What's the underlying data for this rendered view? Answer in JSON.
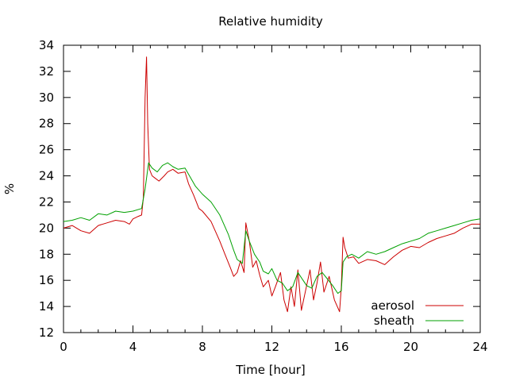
{
  "chart_data": {
    "type": "line",
    "title": "Relative humidity",
    "xlabel": "Time [hour]",
    "ylabel": "%",
    "xlim": [
      0,
      24
    ],
    "ylim": [
      12,
      34
    ],
    "xticks": [
      0,
      4,
      8,
      12,
      16,
      20,
      24
    ],
    "yticks": [
      12,
      14,
      16,
      18,
      20,
      22,
      24,
      26,
      28,
      30,
      32,
      34
    ],
    "grid": false,
    "legend_position": "bottom-right",
    "series": [
      {
        "name": "aerosol",
        "color": "#cc0000",
        "x": [
          0,
          0.5,
          1.0,
          1.5,
          2.0,
          2.5,
          3.0,
          3.5,
          3.8,
          4.0,
          4.3,
          4.5,
          4.6,
          4.7,
          4.78,
          4.85,
          4.95,
          5.1,
          5.3,
          5.5,
          5.8,
          6.0,
          6.3,
          6.6,
          7.0,
          7.2,
          7.5,
          7.8,
          8.0,
          8.5,
          9.0,
          9.3,
          9.6,
          9.8,
          10.0,
          10.2,
          10.4,
          10.5,
          10.7,
          10.9,
          11.1,
          11.3,
          11.5,
          11.8,
          12.0,
          12.2,
          12.5,
          12.7,
          12.9,
          13.1,
          13.3,
          13.5,
          13.7,
          14.0,
          14.2,
          14.4,
          14.6,
          14.8,
          15.0,
          15.3,
          15.6,
          15.9,
          16.0,
          16.1,
          16.2,
          16.4,
          16.7,
          17.0,
          17.5,
          18.0,
          18.5,
          19.0,
          19.5,
          20.0,
          20.5,
          21.0,
          21.5,
          22.0,
          22.5,
          23.0,
          23.5,
          24.0
        ],
        "y": [
          20.0,
          20.2,
          19.8,
          19.6,
          20.2,
          20.4,
          20.6,
          20.5,
          20.3,
          20.7,
          20.9,
          21.0,
          22.3,
          30.0,
          33.1,
          28.0,
          24.5,
          24.0,
          23.8,
          23.6,
          24.0,
          24.3,
          24.5,
          24.2,
          24.3,
          23.4,
          22.5,
          21.5,
          21.3,
          20.5,
          19.0,
          18.0,
          17.0,
          16.3,
          16.6,
          17.5,
          16.6,
          20.4,
          19.0,
          17.0,
          17.5,
          16.4,
          15.5,
          16.0,
          14.8,
          15.5,
          16.6,
          14.5,
          13.6,
          15.5,
          14.0,
          16.8,
          13.7,
          15.6,
          16.8,
          14.5,
          15.8,
          17.4,
          15.1,
          16.3,
          14.5,
          13.6,
          15.5,
          19.3,
          18.5,
          17.7,
          17.8,
          17.3,
          17.6,
          17.5,
          17.2,
          17.8,
          18.3,
          18.6,
          18.5,
          18.9,
          19.2,
          19.4,
          19.6,
          20.0,
          20.3,
          20.3
        ]
      },
      {
        "name": "sheath",
        "color": "#00a000",
        "x": [
          0,
          0.5,
          1.0,
          1.5,
          2.0,
          2.5,
          3.0,
          3.5,
          4.0,
          4.5,
          4.7,
          4.9,
          5.1,
          5.4,
          5.7,
          6.0,
          6.3,
          6.6,
          7.0,
          7.3,
          7.6,
          8.0,
          8.5,
          9.0,
          9.5,
          9.8,
          10.0,
          10.3,
          10.5,
          10.7,
          11.0,
          11.3,
          11.5,
          11.8,
          12.0,
          12.3,
          12.6,
          12.9,
          13.2,
          13.5,
          13.8,
          14.0,
          14.3,
          14.6,
          14.9,
          15.2,
          15.5,
          15.8,
          16.0,
          16.1,
          16.3,
          16.6,
          17.0,
          17.5,
          18.0,
          18.5,
          19.0,
          19.5,
          20.0,
          20.5,
          21.0,
          21.5,
          22.0,
          22.5,
          23.0,
          23.5,
          24.0
        ],
        "y": [
          20.5,
          20.6,
          20.8,
          20.6,
          21.1,
          21.0,
          21.3,
          21.2,
          21.3,
          21.5,
          23.0,
          25.0,
          24.6,
          24.3,
          24.8,
          25.0,
          24.7,
          24.5,
          24.6,
          23.9,
          23.2,
          22.6,
          22.0,
          21.0,
          19.5,
          18.3,
          17.6,
          17.3,
          19.8,
          19.0,
          18.0,
          17.4,
          16.7,
          16.5,
          16.9,
          16.0,
          15.8,
          15.2,
          15.5,
          16.6,
          16.0,
          15.6,
          15.4,
          16.3,
          16.6,
          16.1,
          15.6,
          15.0,
          15.2,
          17.4,
          17.8,
          18.0,
          17.7,
          18.2,
          18.0,
          18.2,
          18.5,
          18.8,
          19.0,
          19.2,
          19.6,
          19.8,
          20.0,
          20.2,
          20.4,
          20.6,
          20.7
        ]
      }
    ]
  }
}
